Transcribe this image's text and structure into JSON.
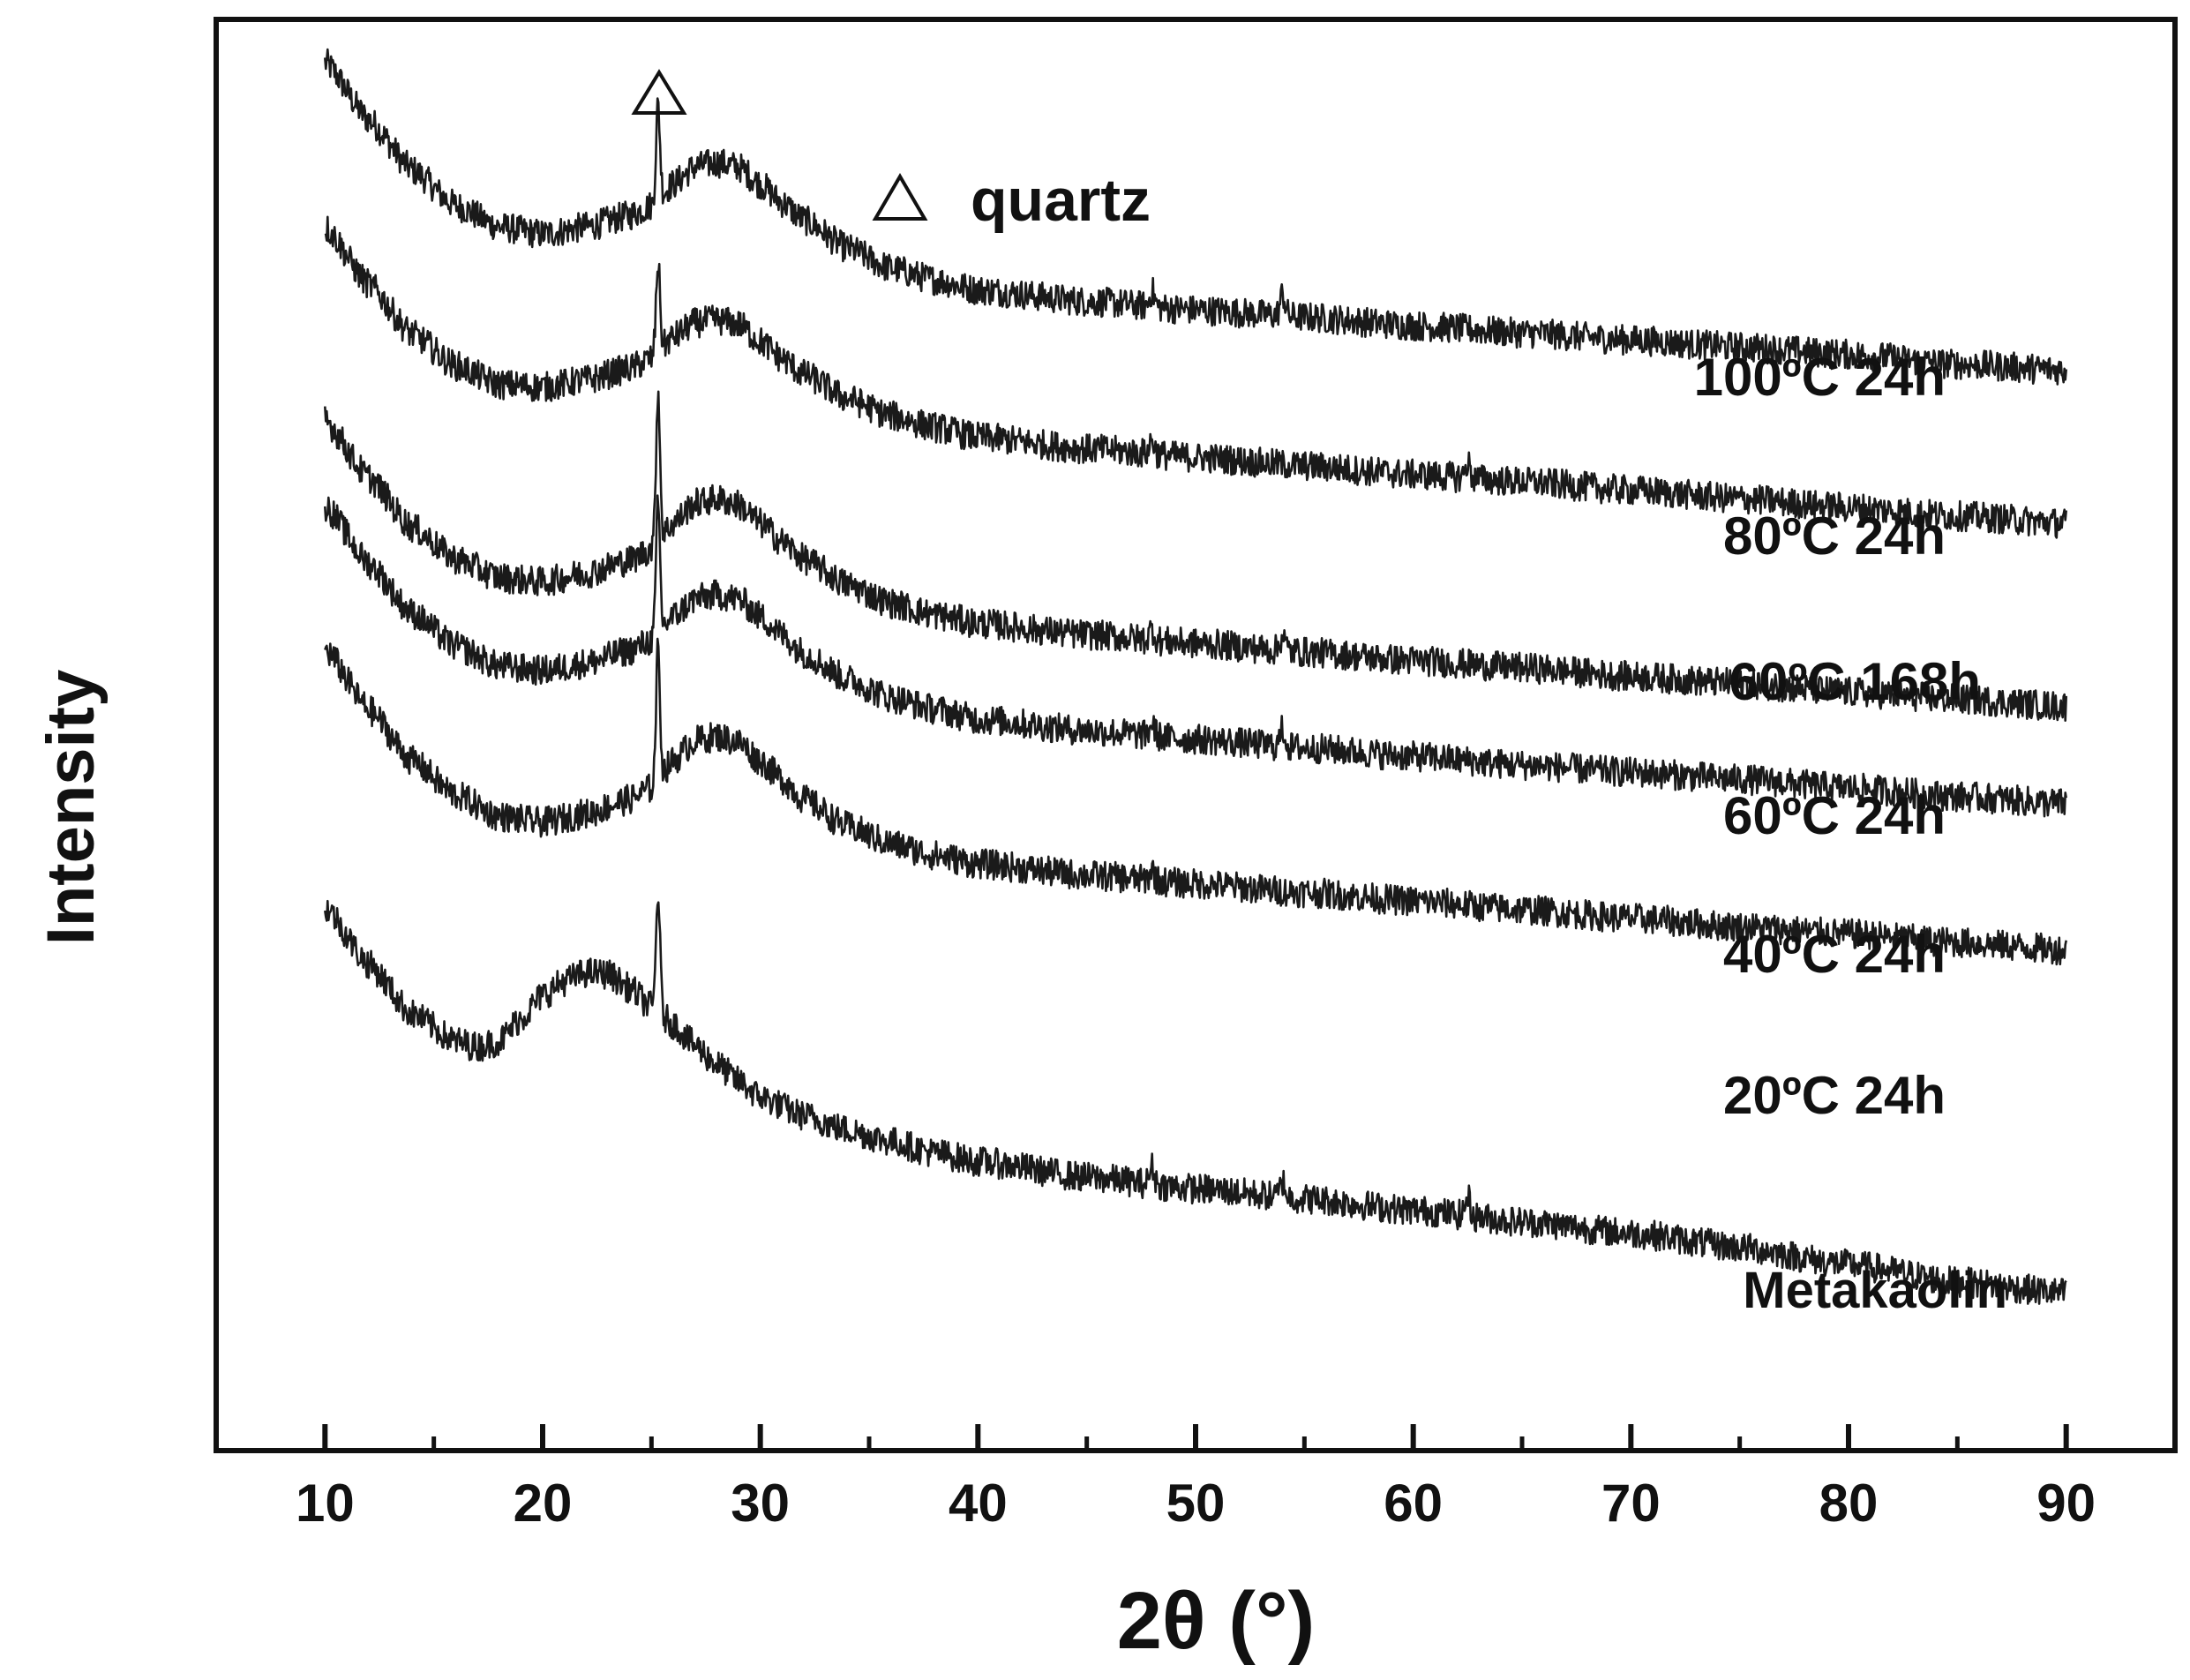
{
  "chart_data": {
    "type": "line",
    "title": "",
    "xlabel": "2θ (°)",
    "ylabel": "Intensity",
    "xlim": [
      5,
      95
    ],
    "xticks": [
      10,
      20,
      30,
      40,
      50,
      60,
      70,
      80,
      90
    ],
    "x_minor_ticks": [
      15,
      25,
      35,
      45,
      55,
      65,
      75,
      85
    ],
    "yticks_shown": false,
    "grid": false,
    "legend": {
      "symbol": "△",
      "label": "quartz",
      "placement": "top-center"
    },
    "annotations": [
      {
        "symbol": "△",
        "x": 25.3,
        "label": "quartz peak"
      }
    ],
    "series_note": "curves are vertically offset stacked diffraction patterns; intensity in arbitrary units (0 = bottom of plot area, 100 = top)",
    "series": [
      {
        "name": "100°C 24h",
        "points": [
          [
            10,
            97
          ],
          [
            12,
            93
          ],
          [
            14,
            89.5
          ],
          [
            16,
            87
          ],
          [
            18,
            85.5
          ],
          [
            20,
            85
          ],
          [
            22,
            85.5
          ],
          [
            24,
            86.3
          ],
          [
            25,
            87
          ],
          [
            26,
            88.5
          ],
          [
            27,
            89.7
          ],
          [
            28,
            90
          ],
          [
            29,
            89.7
          ],
          [
            30,
            88.5
          ],
          [
            31,
            87.2
          ],
          [
            32,
            86
          ],
          [
            34,
            84
          ],
          [
            36,
            82.6
          ],
          [
            38,
            81.8
          ],
          [
            40,
            81.1
          ],
          [
            45,
            80.3
          ],
          [
            50,
            79.7
          ],
          [
            55,
            79.2
          ],
          [
            60,
            78.6
          ],
          [
            65,
            78.1
          ],
          [
            70,
            77.6
          ],
          [
            75,
            77.1
          ],
          [
            80,
            76.6
          ],
          [
            85,
            75.9
          ],
          [
            90,
            75.5
          ]
        ],
        "peaks": [
          {
            "x": 25.3,
            "y": 94
          },
          {
            "x": 48,
            "y": 81
          },
          {
            "x": 54,
            "y": 80.8
          }
        ]
      },
      {
        "name": "80°C 24h",
        "points": [
          [
            10,
            85.5
          ],
          [
            12,
            81.5
          ],
          [
            14,
            78
          ],
          [
            16,
            75.8
          ],
          [
            18,
            74.5
          ],
          [
            20,
            74.3
          ],
          [
            22,
            74.8
          ],
          [
            24,
            75.6
          ],
          [
            25,
            76.3
          ],
          [
            26,
            77.8
          ],
          [
            27,
            78.8
          ],
          [
            28,
            79
          ],
          [
            29,
            78.7
          ],
          [
            30,
            77.5
          ],
          [
            31,
            76.3
          ],
          [
            32,
            75.2
          ],
          [
            34,
            73.5
          ],
          [
            36,
            72.3
          ],
          [
            38,
            71.5
          ],
          [
            40,
            70.8
          ],
          [
            45,
            70
          ],
          [
            50,
            69.4
          ],
          [
            55,
            68.8
          ],
          [
            60,
            68.2
          ],
          [
            65,
            67.7
          ],
          [
            70,
            67.1
          ],
          [
            75,
            66.5
          ],
          [
            80,
            65.9
          ],
          [
            85,
            65.3
          ],
          [
            90,
            64.8
          ]
        ],
        "peaks": [
          {
            "x": 25.3,
            "y": 83
          },
          {
            "x": 48,
            "y": 70.6
          },
          {
            "x": 62.5,
            "y": 69
          }
        ]
      },
      {
        "name": "60°C 168h",
        "points": [
          [
            10,
            72
          ],
          [
            12,
            68
          ],
          [
            14,
            64.5
          ],
          [
            16,
            62.3
          ],
          [
            18,
            61
          ],
          [
            20,
            60.7
          ],
          [
            22,
            61.3
          ],
          [
            24,
            62.2
          ],
          [
            25,
            63
          ],
          [
            26,
            64.8
          ],
          [
            27,
            66.2
          ],
          [
            28,
            66.5
          ],
          [
            29,
            66.1
          ],
          [
            30,
            64.8
          ],
          [
            31,
            63.5
          ],
          [
            32,
            62.3
          ],
          [
            34,
            60.5
          ],
          [
            36,
            59.2
          ],
          [
            38,
            58.4
          ],
          [
            40,
            57.8
          ],
          [
            45,
            57
          ],
          [
            50,
            56.4
          ],
          [
            55,
            55.8
          ],
          [
            60,
            55.2
          ],
          [
            65,
            54.7
          ],
          [
            70,
            54.1
          ],
          [
            75,
            53.6
          ],
          [
            80,
            53
          ],
          [
            85,
            52.5
          ],
          [
            90,
            52
          ]
        ],
        "peaks": [
          {
            "x": 25.3,
            "y": 74
          },
          {
            "x": 48,
            "y": 57.4
          },
          {
            "x": 54,
            "y": 57
          }
        ]
      },
      {
        "name": "60°C 24h",
        "points": [
          [
            10,
            66
          ],
          [
            12,
            62
          ],
          [
            14,
            58.5
          ],
          [
            16,
            56.2
          ],
          [
            18,
            54.8
          ],
          [
            20,
            54.5
          ],
          [
            22,
            55
          ],
          [
            24,
            55.9
          ],
          [
            25,
            56.6
          ],
          [
            26,
            58.3
          ],
          [
            27,
            59.5
          ],
          [
            28,
            59.8
          ],
          [
            29,
            59.5
          ],
          [
            30,
            58.3
          ],
          [
            31,
            57
          ],
          [
            32,
            55.7
          ],
          [
            34,
            53.9
          ],
          [
            36,
            52.6
          ],
          [
            38,
            51.8
          ],
          [
            40,
            51.1
          ],
          [
            45,
            50.3
          ],
          [
            50,
            49.7
          ],
          [
            55,
            49.1
          ],
          [
            60,
            48.5
          ],
          [
            65,
            47.9
          ],
          [
            70,
            47.4
          ],
          [
            75,
            46.9
          ],
          [
            80,
            46.3
          ],
          [
            85,
            45.7
          ],
          [
            90,
            45.2
          ]
        ],
        "peaks": [
          {
            "x": 25.3,
            "y": 66
          },
          {
            "x": 48,
            "y": 50.8
          },
          {
            "x": 54,
            "y": 50.4
          }
        ]
      },
      {
        "name": "40°C 24h",
        "points": [
          [
            10,
            56
          ],
          [
            12,
            51.8
          ],
          [
            14,
            48.2
          ],
          [
            16,
            45.8
          ],
          [
            18,
            44.3
          ],
          [
            20,
            43.9
          ],
          [
            22,
            44.5
          ],
          [
            24,
            45.5
          ],
          [
            25,
            46.3
          ],
          [
            26,
            48.2
          ],
          [
            27,
            49.6
          ],
          [
            28,
            49.9
          ],
          [
            29,
            49.5
          ],
          [
            30,
            48.2
          ],
          [
            31,
            46.9
          ],
          [
            32,
            45.5
          ],
          [
            34,
            43.6
          ],
          [
            36,
            42.4
          ],
          [
            38,
            41.6
          ],
          [
            40,
            41
          ],
          [
            45,
            40.2
          ],
          [
            50,
            39.6
          ],
          [
            55,
            39
          ],
          [
            60,
            38.4
          ],
          [
            65,
            37.8
          ],
          [
            70,
            37.2
          ],
          [
            75,
            36.6
          ],
          [
            80,
            36.1
          ],
          [
            85,
            35.5
          ],
          [
            90,
            35
          ]
        ],
        "peaks": [
          {
            "x": 25.3,
            "y": 56
          },
          {
            "x": 48,
            "y": 40.6
          }
        ]
      },
      {
        "name": "20°C 24h",
        "points": [
          [
            10,
            38
          ],
          [
            12,
            34
          ],
          [
            14,
            30.5
          ],
          [
            16,
            28.6
          ],
          [
            17,
            28.2
          ],
          [
            18,
            28.6
          ],
          [
            19,
            30.2
          ],
          [
            20,
            31.8
          ],
          [
            21,
            32.8
          ],
          [
            22,
            33.4
          ],
          [
            23,
            33.3
          ],
          [
            24,
            32.3
          ],
          [
            25,
            31
          ],
          [
            26,
            29.8
          ],
          [
            27,
            28.3
          ],
          [
            28,
            27
          ],
          [
            29,
            25.8
          ],
          [
            30,
            24.7
          ],
          [
            32,
            23.4
          ],
          [
            34,
            22.4
          ],
          [
            36,
            21.6
          ],
          [
            38,
            20.8
          ],
          [
            40,
            20.2
          ],
          [
            45,
            19.1
          ],
          [
            50,
            18.3
          ],
          [
            55,
            17.6
          ],
          [
            60,
            16.8
          ],
          [
            65,
            16
          ],
          [
            70,
            15.2
          ],
          [
            75,
            14.2
          ],
          [
            80,
            13
          ],
          [
            85,
            11.8
          ],
          [
            90,
            11
          ]
        ],
        "peaks": [
          {
            "x": 25.3,
            "y": 39
          },
          {
            "x": 48,
            "y": 19.8
          },
          {
            "x": 54,
            "y": 18.8
          },
          {
            "x": 62.5,
            "y": 17.7
          }
        ]
      }
    ],
    "label_texts": [
      "100ºC  24h",
      "80ºC  24h",
      "60ºC  168h",
      "60ºC  24h",
      "40ºC  24h",
      "20ºC  24h",
      "Metakaolin"
    ]
  }
}
